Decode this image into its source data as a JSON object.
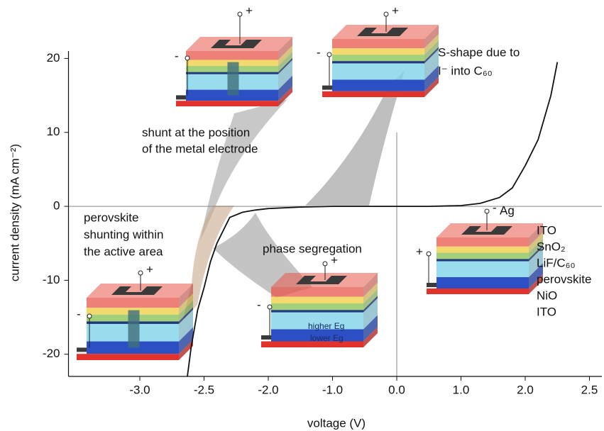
{
  "chart_data": {
    "type": "line",
    "x_label": "voltage (V)",
    "y_label": "current density (mA cm⁻²)",
    "xlim": [
      -3.5,
      2.5
    ],
    "ylim": [
      -23,
      21
    ],
    "xticks": [
      {
        "value": -3,
        "label": "-3.0"
      },
      {
        "value": -2.5,
        "label": "-2.5"
      },
      {
        "value": -2,
        "label": "-2.0"
      },
      {
        "value": -1,
        "label": "-1.0"
      },
      {
        "value": 0,
        "label": "0.0"
      },
      {
        "value": 1,
        "label": "1.0"
      },
      {
        "value": 2,
        "label": "2.0"
      },
      {
        "value": 2.5,
        "label": "2.5"
      }
    ],
    "yticks": [
      -20,
      -10,
      0,
      10,
      20
    ],
    "x": [
      -2.63,
      -2.6,
      -2.55,
      -2.5,
      -2.45,
      -2.4,
      -2.3,
      -2.2,
      -2.1,
      -2.0,
      -1.5,
      -1.0,
      0,
      0.5,
      1.0,
      1.3,
      1.6,
      1.8,
      2.0,
      2.1,
      2.2,
      2.25
    ],
    "series": [
      {
        "color": "#111111",
        "values": [
          -23,
          -19,
          -14,
          -11,
          -7.5,
          -5,
          -1.5,
          -0.8,
          -0.5,
          -0.3,
          -0.1,
          0,
          0,
          0,
          0.1,
          0.4,
          1.2,
          2.5,
          5.5,
          9,
          15,
          19.5
        ]
      }
    ],
    "devices": [
      {
        "terminals": [
          "+",
          "-"
        ],
        "caption": [
          "shunt at the position",
          "of the metal electrode"
        ]
      },
      {
        "terminals": [
          "+",
          "-"
        ],
        "caption": [
          "S-shape due to",
          "I⁻ into C₆₀"
        ]
      },
      {
        "terminals": [
          "+",
          "-"
        ],
        "caption": [
          "perovskite",
          "shunting within",
          "the active area"
        ]
      },
      {
        "terminals": [
          "+",
          "-"
        ],
        "caption": [
          "phase segregation"
        ],
        "inner_labels": [
          "higher Eg",
          "lower Eg"
        ]
      },
      {
        "terminals": [
          "-",
          "+"
        ],
        "electrode": "Ag",
        "layer_labels": [
          "ITO",
          "SnO₂",
          "LiF/C₆₀",
          "perovskite",
          "NiO",
          "ITO"
        ]
      }
    ]
  }
}
